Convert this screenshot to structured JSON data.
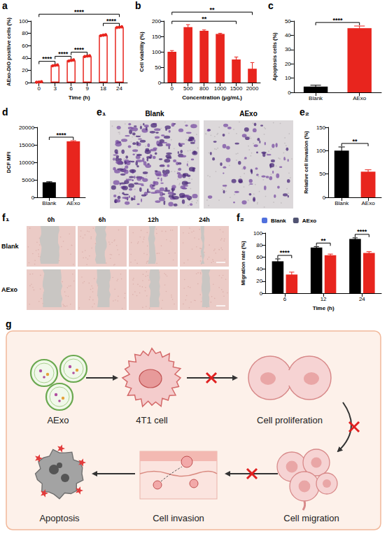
{
  "chart_data": [
    {
      "panel": "a",
      "type": "bar",
      "categories": [
        "0",
        "3",
        "6",
        "9",
        "18",
        "24"
      ],
      "values": [
        1,
        28,
        36,
        43,
        77,
        90
      ],
      "errors": [
        0.5,
        0.8,
        1,
        0.7,
        0.8,
        0.6
      ],
      "points": [
        [
          0.6,
          1,
          1.4
        ],
        [
          27.2,
          28,
          28.8
        ],
        [
          35,
          36,
          37
        ],
        [
          42.3,
          43,
          43.7
        ],
        [
          76.2,
          77,
          77.8
        ],
        [
          89.4,
          90,
          90.6
        ]
      ],
      "color": "#e8251e",
      "x_label": "Time (h)",
      "y_label": "AExo-DiO positive cells (%)",
      "ylim": [
        0,
        100
      ],
      "yticks": [
        0,
        20,
        40,
        60,
        80,
        100
      ],
      "annotations": [
        {
          "from": "0",
          "to": "3",
          "text": "****"
        },
        {
          "from": "3",
          "to": "6",
          "text": "****"
        },
        {
          "from": "6",
          "to": "9",
          "text": "****"
        },
        {
          "from": "18",
          "to": "24",
          "text": "****"
        },
        {
          "from": "0",
          "to": "24",
          "text": "****"
        }
      ]
    },
    {
      "panel": "b",
      "type": "bar",
      "categories": [
        "0",
        "500",
        "800",
        "1000",
        "1500",
        "2000"
      ],
      "values": [
        100,
        180,
        168,
        158,
        75,
        45
      ],
      "errors": [
        4,
        8,
        3,
        2,
        8,
        20
      ],
      "color": "#e8251e",
      "x_label": "Concentration (μg/mL)",
      "y_label": "Cell viability (%)",
      "ylim": [
        0,
        200
      ],
      "yticks": [
        0,
        50,
        100,
        150,
        200
      ],
      "annotations": [
        {
          "from": "0",
          "to": "1500",
          "text": "**"
        },
        {
          "from": "0",
          "to": "2000",
          "text": "**"
        }
      ]
    },
    {
      "panel": "c",
      "type": "bar",
      "categories": [
        "Blank",
        "AExo"
      ],
      "values": [
        4,
        45
      ],
      "errors": [
        1,
        1.5
      ],
      "colors": [
        "#000000",
        "#e8251e"
      ],
      "y_label": "Apoptosis cells (%)",
      "ylim": [
        0,
        50
      ],
      "yticks": [
        0,
        10,
        20,
        30,
        40,
        50
      ],
      "annotations": [
        {
          "from": "Blank",
          "to": "AExo",
          "text": "****"
        }
      ]
    },
    {
      "panel": "d",
      "type": "bar",
      "categories": [
        "Blank",
        "AExo"
      ],
      "values": [
        4300,
        16000
      ],
      "errors": [
        150,
        200
      ],
      "colors": [
        "#000000",
        "#e8251e"
      ],
      "y_label": "DCF MFI",
      "ylim": [
        0,
        20000
      ],
      "yticks": [
        0,
        5000,
        10000,
        15000,
        20000
      ],
      "annotations": [
        {
          "from": "Blank",
          "to": "AExo",
          "text": "****"
        }
      ]
    },
    {
      "panel": "e₂",
      "type": "bar",
      "categories": [
        "Blank",
        "AExo"
      ],
      "values": [
        100,
        55
      ],
      "errors": [
        8,
        4
      ],
      "colors": [
        "#000000",
        "#e8251e"
      ],
      "y_label": "Relative cell invasion (%)",
      "ylim": [
        0,
        150
      ],
      "yticks": [
        0,
        50,
        100,
        150
      ],
      "annotations": [
        {
          "from": "Blank",
          "to": "AExo",
          "text": "**"
        }
      ]
    },
    {
      "panel": "f₂",
      "type": "bar",
      "categories": [
        "6",
        "12",
        "24"
      ],
      "series": [
        {
          "name": "Blank",
          "color": "#000000",
          "values": [
            53,
            76,
            90
          ],
          "errors": [
            4,
            1.5,
            2
          ]
        },
        {
          "name": "AExo",
          "color": "#e8251e",
          "values": [
            31,
            63,
            67
          ],
          "errors": [
            4,
            2,
            2
          ]
        }
      ],
      "x_label": "Time (h)",
      "y_label": "Migration rate (%)",
      "ylim": [
        0,
        100
      ],
      "yticks": [
        0,
        20,
        40,
        60,
        80,
        100
      ],
      "legend": "top-left",
      "annotations": [
        {
          "category": "6",
          "text": "****"
        },
        {
          "category": "12",
          "text": "**"
        },
        {
          "category": "24",
          "text": "****"
        }
      ]
    }
  ],
  "images": [
    {
      "panel": "e₁",
      "columns": [
        "Blank",
        "AExo"
      ]
    },
    {
      "panel": "f₁",
      "columns": [
        "0h",
        "6h",
        "12h",
        "24h"
      ],
      "rows": [
        "Blank",
        "AExo"
      ]
    }
  ],
  "diagram": {
    "panel": "g",
    "nodes": [
      {
        "label": "AExo"
      },
      {
        "label": "4T1 cell"
      },
      {
        "label": "Cell proliferation"
      },
      {
        "label": "Cell migration"
      },
      {
        "label": "Cell invasion"
      },
      {
        "label": "Apoptosis"
      }
    ],
    "edges": [
      {
        "from": 0,
        "to": 1,
        "blocked": false
      },
      {
        "from": 1,
        "to": 2,
        "blocked": true
      },
      {
        "from": 2,
        "to": 3,
        "blocked": true
      },
      {
        "from": 3,
        "to": 4,
        "blocked": true
      },
      {
        "from": 4,
        "to": 5,
        "blocked": false
      }
    ]
  }
}
